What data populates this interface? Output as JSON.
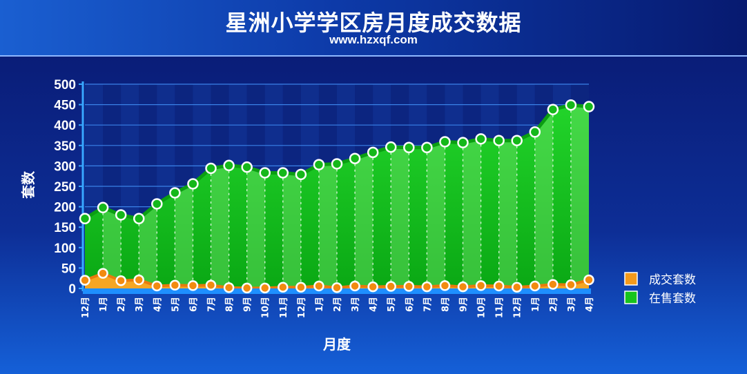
{
  "header": {
    "title": "星洲小学学区房月度成交数据",
    "subtitle": "www.hzxqf.com"
  },
  "colors": {
    "sold": "#f39a1c",
    "listed": "#17c41c",
    "axis": "#38a8ff",
    "background": "#0a1d78"
  },
  "chart_data": {
    "type": "area",
    "title": "星洲小学学区房月度成交数据",
    "xlabel": "月度",
    "ylabel": "套数",
    "ylim": [
      0,
      500
    ],
    "yticks": [
      "0",
      "50",
      "100",
      "150",
      "200",
      "250",
      "300",
      "350",
      "400",
      "450",
      "500"
    ],
    "grid": "horizontal",
    "legend_position": "right",
    "categories": [
      "12月",
      "1月",
      "2月",
      "3月",
      "4月",
      "5月",
      "6月",
      "7月",
      "8月",
      "9月",
      "10月",
      "11月",
      "12月",
      "1月",
      "2月",
      "3月",
      "4月",
      "5月",
      "6月",
      "7月",
      "8月",
      "9月",
      "10月",
      "11月",
      "12月",
      "1月",
      "2月",
      "3月",
      "4月"
    ],
    "series": [
      {
        "name": "成交套数",
        "color": "#f39a1c",
        "values": [
          20,
          37,
          19,
          21,
          6,
          8,
          7,
          8,
          2,
          1,
          1,
          3,
          3,
          6,
          2,
          6,
          4,
          5,
          5,
          4,
          7,
          4,
          7,
          6,
          3,
          6,
          10,
          9,
          21
        ]
      },
      {
        "name": "在售套数",
        "color": "#17c41c",
        "values": [
          171,
          198,
          180,
          171,
          207,
          234,
          256,
          294,
          301,
          297,
          283,
          283,
          279,
          303,
          305,
          318,
          333,
          346,
          345,
          345,
          359,
          357,
          366,
          362,
          362,
          383,
          438,
          449,
          445
        ]
      }
    ]
  }
}
